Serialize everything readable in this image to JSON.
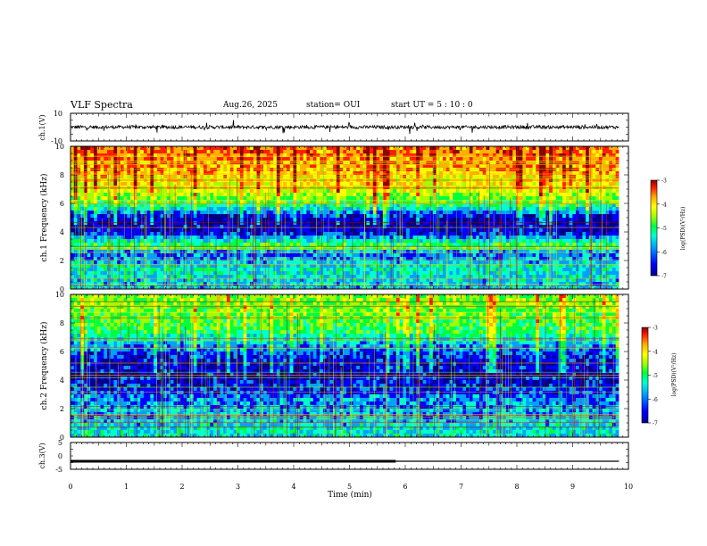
{
  "header": {
    "title": "VLF Spectra",
    "date": "Aug.26, 2025",
    "station": "station= OUI",
    "start": "start UT =  5 : 10 : 0"
  },
  "colors": {
    "colormap": [
      "#00008b",
      "#0000ff",
      "#00a0ff",
      "#00ffd0",
      "#00ff40",
      "#a0ff00",
      "#ffff00",
      "#ffb000",
      "#ff2000",
      "#8b0000"
    ],
    "trace": "#000000"
  },
  "chart_data": [
    {
      "type": "line",
      "panel": "ch1-waveform",
      "ylabel": "ch.1(V)",
      "ylim": [
        -10,
        10
      ],
      "yticks": [
        "10",
        "-10"
      ],
      "baseline": 0,
      "xlim": [
        0,
        9.83
      ],
      "note_visible": "noisy near-constant trace around 0 V with spikes"
    },
    {
      "type": "heatmap",
      "panel": "ch1-spectrogram",
      "ylabel": "ch.1 Frequency (kHz)",
      "ylim": [
        0,
        10
      ],
      "yticks": [
        "0",
        "2",
        "4",
        "6",
        "8",
        "10"
      ],
      "xlim": [
        0,
        9.83
      ],
      "colorbar": {
        "label": "log(PSD)(V²/Hz)",
        "range": [
          -7,
          -3
        ],
        "ticks": [
          "-3",
          "-4",
          "-5",
          "-6",
          "-7"
        ]
      },
      "band_profile": [
        {
          "f_khz": 0.5,
          "level": -5.8
        },
        {
          "f_khz": 1.5,
          "level": -5.6
        },
        {
          "f_khz": 2.5,
          "level": -6.2
        },
        {
          "f_khz": 3.0,
          "level": -5.0
        },
        {
          "f_khz": 4.0,
          "level": -6.6
        },
        {
          "f_khz": 5.0,
          "level": -6.7
        },
        {
          "f_khz": 6.0,
          "level": -5.2
        },
        {
          "f_khz": 7.0,
          "level": -4.5
        },
        {
          "f_khz": 8.5,
          "level": -4.0
        },
        {
          "f_khz": 9.5,
          "level": -3.8
        }
      ]
    },
    {
      "type": "heatmap",
      "panel": "ch2-spectrogram",
      "ylabel": "ch.2 Frequency (kHz)",
      "ylim": [
        0,
        10
      ],
      "yticks": [
        "0",
        "2",
        "4",
        "6",
        "8",
        "10"
      ],
      "xlim": [
        0,
        9.83
      ],
      "colorbar": {
        "label": "log(PSD)(V²/Hz)",
        "range": [
          -7,
          -3
        ],
        "ticks": [
          "-3",
          "-4",
          "-5",
          "-6",
          "-7"
        ]
      },
      "band_profile": [
        {
          "f_khz": 0.5,
          "level": -5.7
        },
        {
          "f_khz": 1.5,
          "level": -5.9
        },
        {
          "f_khz": 2.5,
          "level": -6.0
        },
        {
          "f_khz": 3.5,
          "level": -6.4
        },
        {
          "f_khz": 4.5,
          "level": -6.6
        },
        {
          "f_khz": 5.5,
          "level": -6.5
        },
        {
          "f_khz": 6.5,
          "level": -5.9
        },
        {
          "f_khz": 7.5,
          "level": -5.2
        },
        {
          "f_khz": 8.5,
          "level": -5.0
        },
        {
          "f_khz": 9.5,
          "level": -4.9
        }
      ]
    },
    {
      "type": "line",
      "panel": "ch3-waveform",
      "ylabel": "ch.3(V)",
      "ylim": [
        -5,
        5
      ],
      "yticks": [
        "5",
        "0",
        "-5"
      ],
      "segments": [
        {
          "x0": 0,
          "x1": 5.83,
          "y": -2,
          "weight": "thick"
        },
        {
          "x0": 5.83,
          "x1": 9.83,
          "y": -2,
          "weight": "thin"
        }
      ],
      "xlabel": "Time (min)",
      "xlim": [
        0,
        10
      ],
      "xticks": [
        "0",
        "1",
        "2",
        "3",
        "4",
        "5",
        "6",
        "7",
        "8",
        "9",
        "10"
      ]
    }
  ]
}
